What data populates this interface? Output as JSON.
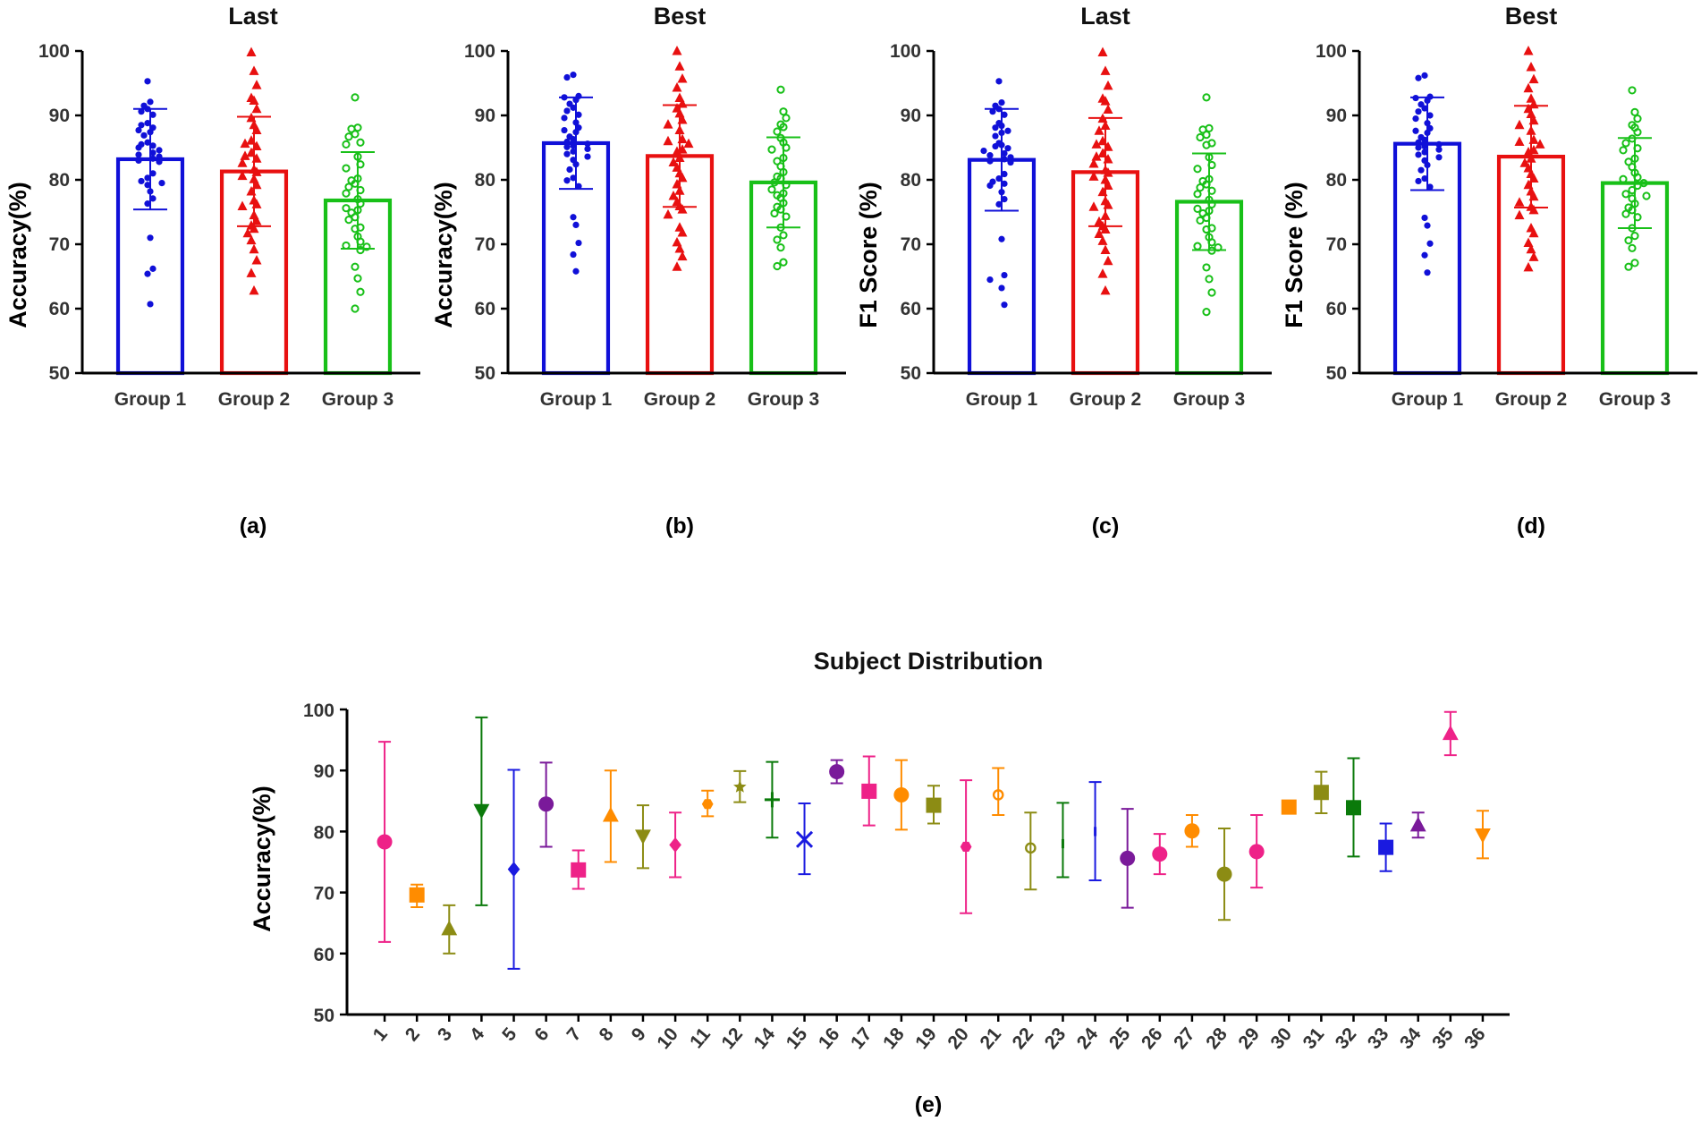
{
  "chart_data": [
    {
      "type": "bar",
      "id": "a",
      "title": "Last",
      "ylabel": "Accuracy(%)",
      "caption": "(a)",
      "ylim": [
        50,
        100
      ],
      "yticks": [
        50,
        60,
        70,
        80,
        90,
        100
      ],
      "categories": [
        "Group 1",
        "Group 2",
        "Group 3"
      ],
      "colors": [
        "#1010d8",
        "#e81010",
        "#18c018"
      ],
      "markers": [
        "dot",
        "triangle",
        "ring"
      ],
      "means": [
        83.2,
        81.3,
        76.8
      ],
      "sd": [
        7.8,
        8.5,
        7.5
      ],
      "points": [
        [
          95.3,
          92.1,
          91.5,
          91.0,
          90.6,
          90.1,
          88.8,
          88.5,
          88.1,
          87.7,
          87.4,
          86.9,
          85.8,
          85.5,
          85.3,
          85.0,
          84.6,
          84.2,
          83.9,
          83.6,
          83.3,
          83.0,
          82.8,
          81.0,
          80.3,
          79.8,
          79.5,
          79.2,
          78.2,
          77.1,
          76.3,
          71.0,
          66.2,
          65.4,
          60.7
        ],
        [
          99.8,
          96.9,
          94.7,
          92.7,
          92.3,
          91.0,
          89.6,
          88.5,
          87.7,
          86.1,
          85.6,
          85.2,
          84.2,
          83.7,
          83.3,
          82.6,
          81.6,
          81.2,
          80.6,
          80.1,
          79.2,
          78.2,
          76.8,
          76.2,
          75.9,
          74.5,
          73.6,
          72.9,
          72.4,
          71.7,
          70.6,
          69.2,
          67.5,
          65.5,
          62.8
        ],
        [
          92.8,
          88.1,
          87.9,
          87.1,
          86.7,
          85.8,
          85.5,
          83.6,
          82.4,
          81.8,
          80.2,
          79.9,
          79.4,
          78.9,
          78.4,
          77.9,
          77.0,
          76.3,
          75.6,
          75.3,
          74.9,
          74.2,
          73.8,
          72.6,
          72.4,
          71.2,
          70.4,
          69.8,
          69.6,
          69.1,
          66.5,
          64.7,
          62.6,
          60.0
        ]
      ]
    },
    {
      "type": "bar",
      "id": "b",
      "title": "Best",
      "ylabel": "Accuracy(%)",
      "caption": "(b)",
      "ylim": [
        50,
        100
      ],
      "yticks": [
        50,
        60,
        70,
        80,
        90,
        100
      ],
      "categories": [
        "Group 1",
        "Group 2",
        "Group 3"
      ],
      "colors": [
        "#1010d8",
        "#e81010",
        "#18c018"
      ],
      "markers": [
        "dot",
        "triangle",
        "ring"
      ],
      "means": [
        85.7,
        83.7,
        79.6
      ],
      "sd": [
        7.1,
        7.9,
        7.0
      ],
      "points": [
        [
          96.3,
          95.9,
          93.0,
          92.8,
          92.4,
          91.8,
          91.2,
          90.7,
          90.1,
          89.6,
          88.9,
          88.1,
          87.7,
          87.4,
          86.7,
          86.3,
          85.9,
          85.6,
          85.3,
          85.1,
          84.8,
          84.4,
          84.0,
          83.6,
          83.1,
          82.4,
          81.6,
          80.3,
          79.9,
          79.0,
          74.2,
          73.0,
          70.2,
          68.4,
          65.8
        ],
        [
          100.0,
          97.6,
          95.7,
          94.3,
          92.7,
          91.8,
          91.1,
          90.3,
          89.3,
          88.6,
          87.7,
          86.3,
          86.0,
          85.6,
          84.7,
          84.4,
          83.4,
          82.7,
          81.9,
          81.0,
          80.3,
          79.3,
          78.3,
          77.5,
          76.6,
          75.9,
          75.4,
          74.6,
          72.6,
          71.8,
          70.3,
          69.3,
          68.1,
          66.5
        ],
        [
          94.0,
          90.6,
          89.6,
          88.6,
          88.2,
          87.5,
          86.5,
          85.8,
          85.0,
          84.7,
          83.4,
          82.9,
          82.1,
          81.2,
          80.5,
          80.2,
          79.6,
          79.2,
          78.5,
          77.9,
          77.6,
          77.2,
          76.4,
          75.8,
          75.4,
          74.8,
          74.3,
          72.6,
          71.4,
          70.7,
          69.5,
          67.2,
          66.6
        ]
      ]
    },
    {
      "type": "bar",
      "id": "c",
      "title": "Last",
      "ylabel": "F1 Score (%)",
      "caption": "(c)",
      "ylim": [
        50,
        100
      ],
      "yticks": [
        50,
        60,
        70,
        80,
        90,
        100
      ],
      "categories": [
        "Group 1",
        "Group 2",
        "Group 3"
      ],
      "colors": [
        "#1010d8",
        "#e81010",
        "#18c018"
      ],
      "markers": [
        "dot",
        "triangle",
        "ring"
      ],
      "means": [
        83.1,
        81.2,
        76.6
      ],
      "sd": [
        7.9,
        8.4,
        7.5
      ],
      "points": [
        [
          95.3,
          92.0,
          91.5,
          91.0,
          90.6,
          90.1,
          88.8,
          88.4,
          88.1,
          87.6,
          87.3,
          86.8,
          85.7,
          85.4,
          85.2,
          84.9,
          84.5,
          84.1,
          83.8,
          83.5,
          83.2,
          82.9,
          82.7,
          80.9,
          80.2,
          79.7,
          79.4,
          79.1,
          78.1,
          77.0,
          76.2,
          70.8,
          65.2,
          64.5,
          63.2,
          60.6
        ],
        [
          99.8,
          96.9,
          94.6,
          92.6,
          92.2,
          90.9,
          89.5,
          88.4,
          87.6,
          86.0,
          85.5,
          85.1,
          84.1,
          83.6,
          83.2,
          82.5,
          81.5,
          81.1,
          80.5,
          80.0,
          79.1,
          78.1,
          76.7,
          76.1,
          75.8,
          74.4,
          73.5,
          72.8,
          72.3,
          71.6,
          70.5,
          69.1,
          67.4,
          65.4,
          62.8
        ],
        [
          92.8,
          88.0,
          87.8,
          87.0,
          86.6,
          85.7,
          85.4,
          83.5,
          82.3,
          81.7,
          80.1,
          79.8,
          79.3,
          78.8,
          78.3,
          77.8,
          76.9,
          76.2,
          75.5,
          75.2,
          74.8,
          74.1,
          73.7,
          72.5,
          72.3,
          71.1,
          70.3,
          69.7,
          69.5,
          69.0,
          66.4,
          64.6,
          62.5,
          59.5
        ]
      ]
    },
    {
      "type": "bar",
      "id": "d",
      "title": "Best",
      "ylabel": "F1 Score (%)",
      "caption": "(d)",
      "ylim": [
        50,
        100
      ],
      "yticks": [
        50,
        60,
        70,
        80,
        90,
        100
      ],
      "categories": [
        "Group 1",
        "Group 2",
        "Group 3"
      ],
      "colors": [
        "#1010d8",
        "#e81010",
        "#18c018"
      ],
      "markers": [
        "dot",
        "triangle",
        "ring"
      ],
      "means": [
        85.6,
        83.6,
        79.5
      ],
      "sd": [
        7.2,
        7.9,
        7.0
      ],
      "points": [
        [
          96.2,
          95.8,
          92.9,
          92.7,
          92.3,
          91.7,
          91.1,
          90.6,
          90.0,
          89.5,
          88.8,
          88.0,
          87.6,
          87.3,
          86.6,
          86.2,
          85.8,
          85.5,
          85.2,
          85.0,
          84.7,
          84.3,
          83.9,
          83.5,
          83.0,
          82.3,
          81.5,
          80.2,
          79.8,
          78.9,
          74.1,
          72.9,
          70.1,
          68.3,
          65.6
        ],
        [
          100.0,
          97.5,
          95.6,
          94.2,
          92.6,
          91.7,
          91.0,
          90.2,
          89.2,
          88.5,
          87.6,
          86.2,
          85.9,
          85.5,
          84.6,
          84.3,
          83.3,
          82.6,
          81.8,
          80.9,
          80.2,
          79.2,
          78.2,
          77.4,
          76.5,
          75.8,
          75.3,
          74.5,
          72.5,
          71.7,
          70.2,
          69.2,
          68.0,
          66.4
        ],
        [
          93.9,
          90.5,
          89.5,
          88.5,
          88.1,
          87.4,
          86.4,
          85.7,
          84.9,
          84.6,
          83.3,
          82.8,
          82.0,
          81.1,
          80.4,
          80.1,
          79.5,
          79.1,
          78.4,
          77.8,
          77.5,
          77.1,
          76.3,
          75.7,
          75.3,
          74.7,
          74.2,
          72.5,
          71.3,
          70.6,
          69.4,
          67.1,
          66.5
        ]
      ]
    },
    {
      "type": "scatter",
      "id": "e",
      "title": "Subject Distribution",
      "ylabel": "Accuracy(%)",
      "caption": "(e)",
      "ylim": [
        50,
        100
      ],
      "yticks": [
        50,
        60,
        70,
        80,
        90,
        100
      ],
      "categories": [
        "1",
        "2",
        "3",
        "4",
        "5",
        "6",
        "7",
        "8",
        "9",
        "10",
        "11",
        "12",
        "14",
        "15",
        "16",
        "17",
        "18",
        "19",
        "20",
        "21",
        "22",
        "23",
        "24",
        "25",
        "26",
        "27",
        "28",
        "29",
        "30",
        "31",
        "32",
        "33",
        "34",
        "35",
        "36"
      ],
      "means": [
        78.3,
        69.6,
        64.0,
        83.5,
        73.8,
        84.5,
        73.7,
        82.6,
        79.3,
        77.8,
        84.5,
        87.3,
        85.2,
        78.7,
        89.8,
        86.6,
        86.0,
        84.3,
        77.5,
        86.0,
        77.3,
        78.0,
        80.0,
        75.6,
        76.3,
        80.1,
        73.0,
        76.7,
        84.0,
        86.4,
        83.9,
        77.4,
        81.0,
        96.0,
        79.5
      ],
      "lower": [
        61.9,
        67.6,
        60.0,
        67.9,
        57.5,
        77.5,
        70.6,
        75.0,
        74.0,
        72.5,
        82.5,
        84.8,
        79.0,
        73.0,
        87.9,
        81.0,
        80.3,
        81.3,
        66.6,
        82.7,
        70.5,
        72.5,
        72.0,
        67.5,
        73.0,
        77.5,
        65.5,
        70.8,
        84.0,
        83.0,
        75.9,
        73.5,
        79.0,
        92.5,
        75.6
      ],
      "upper": [
        94.7,
        71.3,
        67.9,
        98.7,
        90.1,
        91.3,
        76.9,
        90.0,
        84.3,
        83.1,
        86.7,
        89.9,
        91.4,
        84.6,
        91.7,
        92.3,
        91.7,
        87.5,
        88.4,
        90.4,
        83.1,
        84.7,
        88.1,
        83.7,
        79.6,
        82.7,
        80.5,
        82.7,
        84.0,
        89.8,
        92.0,
        81.3,
        83.1,
        99.6,
        83.4
      ],
      "colors": [
        "#ee2288",
        "#ff8c00",
        "#8c8c14",
        "#0a7a0a",
        "#1a1ae0",
        "#7a1a9a",
        "#ee2288",
        "#ff8c00",
        "#8c8c14",
        "#ee2288",
        "#ff8c00",
        "#8c8c14",
        "#0a7a0a",
        "#1a1ae0",
        "#7a1a9a",
        "#ee2288",
        "#ff8c00",
        "#8c8c14",
        "#ee2288",
        "#ff8c00",
        "#8c8c14",
        "#0a7a0a",
        "#1a1ae0",
        "#7a1a9a",
        "#ee2288",
        "#ff8c00",
        "#8c8c14",
        "#ee2288",
        "#ff8c00",
        "#8c8c14",
        "#0a7a0a",
        "#1a1ae0",
        "#7a1a9a",
        "#ee2288",
        "#ff8c00"
      ],
      "markers": [
        "circle",
        "square",
        "triangle",
        "tri-down",
        "diamond",
        "circle",
        "square",
        "triangle",
        "tri-down",
        "diamond",
        "hexagon",
        "star",
        "plus",
        "cross",
        "circle",
        "square",
        "circle",
        "square",
        "hexagon",
        "open-circle",
        "open-circle",
        "line",
        "line",
        "circle",
        "circle",
        "circle",
        "circle",
        "circle",
        "square",
        "square",
        "square",
        "square",
        "triangle",
        "triangle",
        "tri-down"
      ]
    }
  ]
}
